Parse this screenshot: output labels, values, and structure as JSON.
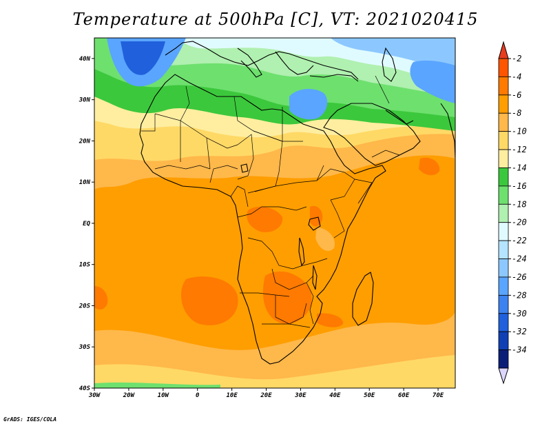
{
  "title": "Temperature at 500hPa [C], VT: 2021020415",
  "footer": "GrADS: IGES/COLA",
  "map": {
    "lon_range": [
      -30,
      75
    ],
    "lat_range": [
      -40,
      45
    ],
    "lat_ticks": [
      {
        "value": 40,
        "label": "40N"
      },
      {
        "value": 30,
        "label": "30N"
      },
      {
        "value": 20,
        "label": "20N"
      },
      {
        "value": 10,
        "label": "10N"
      },
      {
        "value": 0,
        "label": "EQ"
      },
      {
        "value": -10,
        "label": "10S"
      },
      {
        "value": -20,
        "label": "20S"
      },
      {
        "value": -30,
        "label": "30S"
      },
      {
        "value": -40,
        "label": "40S"
      }
    ],
    "lon_ticks": [
      {
        "value": -30,
        "label": "30W"
      },
      {
        "value": -20,
        "label": "20W"
      },
      {
        "value": -10,
        "label": "10W"
      },
      {
        "value": 0,
        "label": "0"
      },
      {
        "value": 10,
        "label": "10E"
      },
      {
        "value": 20,
        "label": "20E"
      },
      {
        "value": 30,
        "label": "30E"
      },
      {
        "value": 40,
        "label": "40E"
      },
      {
        "value": 50,
        "label": "50E"
      },
      {
        "value": 60,
        "label": "60E"
      },
      {
        "value": 70,
        "label": "70E"
      }
    ]
  },
  "colorbar": {
    "levels": [
      {
        "label": "-2",
        "color": "#ff5500"
      },
      {
        "label": "-4",
        "color": "#ff7a00"
      },
      {
        "label": "-6",
        "color": "#ff9e00"
      },
      {
        "label": "-8",
        "color": "#ffb84a"
      },
      {
        "label": "-10",
        "color": "#ffd966"
      },
      {
        "label": "-12",
        "color": "#ffeea0"
      },
      {
        "label": "-14",
        "color": "#3cc83c"
      },
      {
        "label": "-16",
        "color": "#6ee06e"
      },
      {
        "label": "-18",
        "color": "#b0f0b0"
      },
      {
        "label": "-20",
        "color": "#e0fbff"
      },
      {
        "label": "-22",
        "color": "#b4e4ff"
      },
      {
        "label": "-24",
        "color": "#8cc8ff"
      },
      {
        "label": "-26",
        "color": "#5aa5ff"
      },
      {
        "label": "-28",
        "color": "#3c82f0"
      },
      {
        "label": "-30",
        "color": "#2060dc"
      },
      {
        "label": "-32",
        "color": "#1040b4"
      },
      {
        "label": "-34",
        "color": "#0a1e78"
      }
    ],
    "top_color": "#e83c1e",
    "bottom_color": "#dcd6ff"
  }
}
